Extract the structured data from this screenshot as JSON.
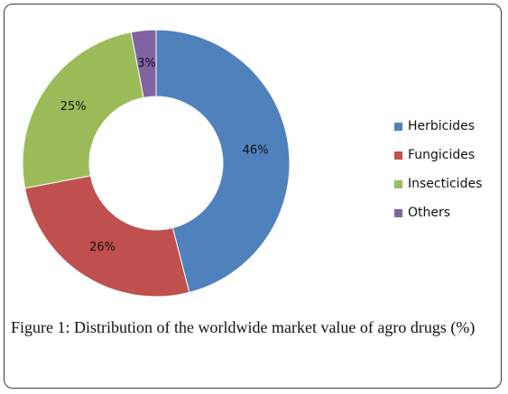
{
  "chart_data": {
    "type": "pie",
    "variant": "donut",
    "categories": [
      "Herbicides",
      "Fungicides",
      "Insecticides",
      "Others"
    ],
    "values": [
      46,
      26,
      25,
      3
    ],
    "labels": [
      "46%",
      "26%",
      "25%",
      "3%"
    ],
    "colors": [
      "#4F81BD",
      "#C0504D",
      "#9BBB59",
      "#8064A2"
    ],
    "legend_position": "right"
  },
  "caption": "Figure 1: Distribution of the worldwide market value of agro drugs (%)"
}
